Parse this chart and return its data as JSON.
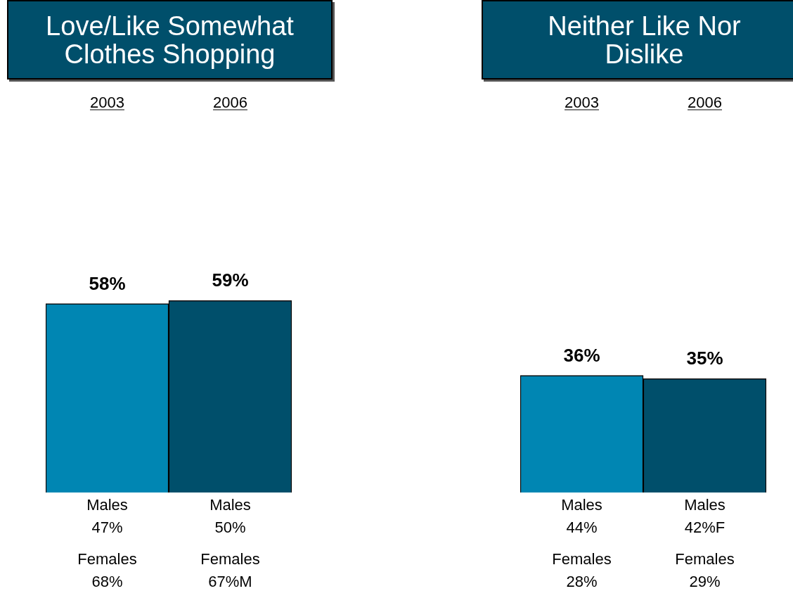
{
  "chart_data": [
    {
      "type": "bar",
      "title": "Love/Like Somewhat Clothes Shopping",
      "categories": [
        "2003",
        "2006"
      ],
      "values": [
        58,
        59
      ],
      "value_labels": [
        "58%",
        "59%"
      ],
      "colors": [
        "#0086b3",
        "#004f6b"
      ],
      "tick_labels": "x",
      "annotations": [
        "Males 47%",
        "Females 68%",
        "Males 50%",
        "Females 67%M"
      ]
    },
    {
      "type": "bar",
      "title": "Neither Like Nor Dislike",
      "categories": [
        "2003",
        "2006"
      ],
      "values": [
        36,
        35
      ],
      "value_labels": [
        "36%",
        "35%"
      ],
      "colors": [
        "#0086b3",
        "#004f6b"
      ],
      "tick_labels": "x",
      "annotations": [
        "Males 44%",
        "Females 28%",
        "Males 42%F",
        "Females 29%"
      ]
    }
  ]
}
